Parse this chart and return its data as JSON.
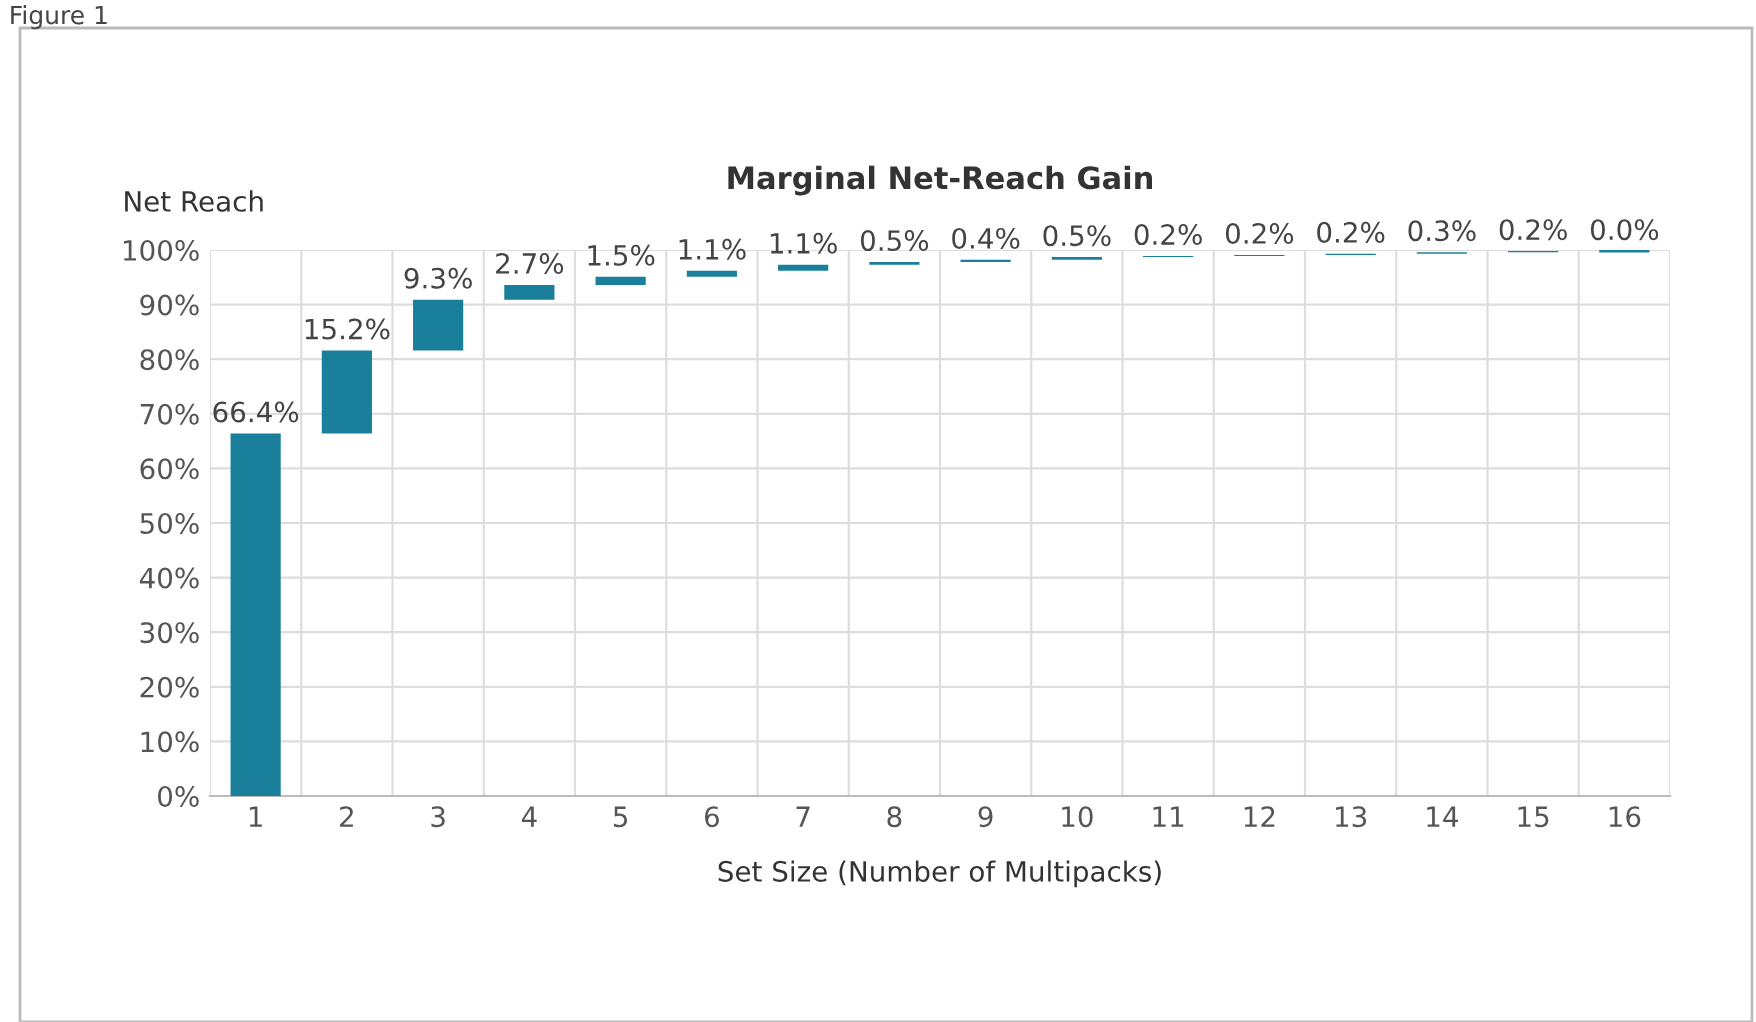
{
  "chart_data": {
    "type": "bar",
    "title": "Marginal Net-Reach Gain",
    "xlabel": "Set Size (Number of Multipacks)",
    "ylabel": "Net Reach",
    "annotations": [
      "Figure 1"
    ],
    "categories": [
      "1",
      "2",
      "3",
      "4",
      "5",
      "6",
      "7",
      "8",
      "9",
      "10",
      "11",
      "12",
      "13",
      "14",
      "15",
      "16"
    ],
    "values": [
      66.4,
      15.2,
      9.3,
      2.7,
      1.5,
      1.1,
      1.1,
      0.5,
      0.4,
      0.5,
      0.2,
      0.2,
      0.2,
      0.3,
      0.2,
      0.0
    ],
    "base": [
      0,
      66.4,
      81.6,
      90.9,
      93.6,
      95.1,
      96.2,
      97.3,
      97.8,
      98.2,
      98.7,
      98.9,
      99.1,
      99.3,
      99.6,
      99.8
    ],
    "value_labels": [
      "66.4%",
      "15.2%",
      "9.3%",
      "2.7%",
      "1.5%",
      "1.1%",
      "1.1%",
      "0.5%",
      "0.4%",
      "0.5%",
      "0.2%",
      "0.2%",
      "0.2%",
      "0.3%",
      "0.2%",
      "0.0%"
    ],
    "color": "#1a7f9a",
    "ylim": [
      0,
      100
    ],
    "yticks": [
      {
        "value": 0,
        "label": "0%"
      },
      {
        "value": 10,
        "label": "10%"
      },
      {
        "value": 20,
        "label": "20%"
      },
      {
        "value": 30,
        "label": "30%"
      },
      {
        "value": 40,
        "label": "40%"
      },
      {
        "value": 50,
        "label": "50%"
      },
      {
        "value": 60,
        "label": "60%"
      },
      {
        "value": 70,
        "label": "70%"
      },
      {
        "value": 80,
        "label": "80%"
      },
      {
        "value": 90,
        "label": "90%"
      },
      {
        "value": 100,
        "label": "100%"
      }
    ],
    "grid": true
  }
}
